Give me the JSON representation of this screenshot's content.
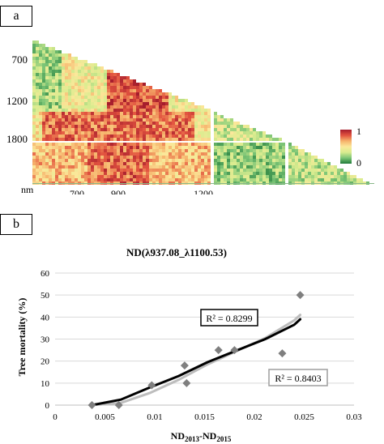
{
  "panel_a": {
    "label": "a",
    "y_ticks": [
      "700",
      "1200",
      "1800"
    ],
    "x_unit": "nm",
    "x_ticks": [
      "700",
      "900",
      "1200"
    ],
    "colorbar": {
      "max_label": "1",
      "min_label": "0",
      "colors": [
        "#1f7a3a",
        "#7cc576",
        "#d9ec8f",
        "#fbe89a",
        "#f6b26b",
        "#e2533f",
        "#a51d2d"
      ]
    }
  },
  "panel_b": {
    "label": "b"
  },
  "chart_data": {
    "type": "scatter",
    "title": "ND(λ937.08_λ1100.53)",
    "xlabel": "ND2013-ND2015",
    "xlabel_main": "ND",
    "xlabel_sub1": "2013",
    "xlabel_mid": "-ND",
    "xlabel_sub2": "2015",
    "ylabel": "Tree mortality (%)",
    "xlim": [
      0,
      0.03
    ],
    "ylim": [
      0,
      60
    ],
    "x_ticks": [
      0,
      0.005,
      0.01,
      0.015,
      0.02,
      0.025,
      0.03
    ],
    "x_tick_labels": [
      "0",
      "0.005",
      "0.01",
      "0.015",
      "0.02",
      "0.025",
      "0.03"
    ],
    "y_ticks": [
      0,
      10,
      20,
      30,
      40,
      50,
      60
    ],
    "y_tick_labels": [
      "0",
      "10",
      "20",
      "30",
      "40",
      "50",
      "60"
    ],
    "grid": "horizontal",
    "marker_color": "#7f7f7f",
    "points": [
      {
        "x": 0.0037,
        "y": 0
      },
      {
        "x": 0.0064,
        "y": 0
      },
      {
        "x": 0.0097,
        "y": 9
      },
      {
        "x": 0.013,
        "y": 18
      },
      {
        "x": 0.0132,
        "y": 10
      },
      {
        "x": 0.0164,
        "y": 25
      },
      {
        "x": 0.018,
        "y": 25
      },
      {
        "x": 0.0228,
        "y": 23.5
      },
      {
        "x": 0.0246,
        "y": 50
      }
    ],
    "fits": [
      {
        "label": "R² = 0.8299",
        "color": "#000000",
        "x": [
          0.0037,
          0.0066,
          0.0095,
          0.0124,
          0.0153,
          0.0182,
          0.0211,
          0.024,
          0.0246
        ],
        "y": [
          0,
          2.5,
          8,
          13.2,
          19.5,
          24.8,
          30,
          36.5,
          39
        ]
      },
      {
        "label": "R² = 0.8403",
        "color": "#bdbdbd",
        "x": [
          0.0037,
          0.0066,
          0.0095,
          0.0124,
          0.0153,
          0.0182,
          0.0211,
          0.024,
          0.0246
        ],
        "y": [
          0,
          1,
          5.5,
          11.5,
          18.5,
          24.5,
          30.5,
          38.5,
          41
        ]
      }
    ]
  }
}
